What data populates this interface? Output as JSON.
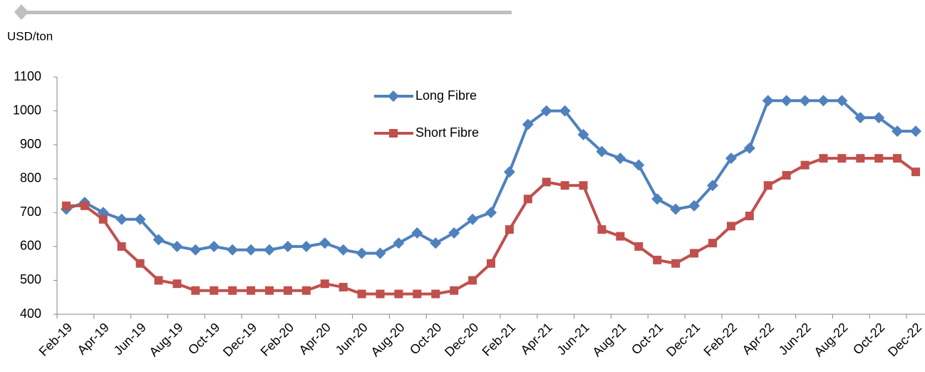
{
  "chart_data": {
    "type": "line",
    "y_label": "USD/ton",
    "categories": [
      "Feb-19",
      null,
      "Apr-19",
      null,
      "Jun-19",
      null,
      "Aug-19",
      null,
      "Oct-19",
      null,
      "Dec-19",
      null,
      "Feb-20",
      null,
      "Apr-20",
      null,
      "Jun-20",
      null,
      "Aug-20",
      null,
      "Oct-20",
      null,
      "Dec-20",
      null,
      "Feb-21",
      null,
      "Apr-21",
      null,
      "Jun-21",
      null,
      "Aug-21",
      null,
      "Oct-21",
      null,
      "Dec-21",
      null,
      "Feb-22",
      null,
      "Apr-22",
      null,
      "Jun-22",
      null,
      "Aug-22",
      null,
      "Oct-22",
      null,
      "Dec-22"
    ],
    "series": [
      {
        "name": "Long Fibre",
        "color": "#4f81bd",
        "marker": "diamond",
        "values": [
          710,
          730,
          700,
          680,
          680,
          620,
          600,
          590,
          600,
          590,
          590,
          590,
          600,
          600,
          610,
          590,
          580,
          580,
          610,
          640,
          610,
          640,
          680,
          700,
          820,
          960,
          1000,
          1000,
          930,
          880,
          860,
          840,
          740,
          710,
          720,
          780,
          860,
          890,
          1030,
          1030,
          1030,
          1030,
          1030,
          980,
          980,
          940,
          940
        ]
      },
      {
        "name": "Short Fibre",
        "color": "#c0504d",
        "marker": "square",
        "values": [
          720,
          720,
          680,
          600,
          550,
          500,
          490,
          470,
          470,
          470,
          470,
          470,
          470,
          470,
          490,
          480,
          460,
          460,
          460,
          460,
          460,
          470,
          500,
          550,
          650,
          740,
          790,
          780,
          780,
          650,
          630,
          600,
          560,
          550,
          580,
          610,
          660,
          690,
          780,
          810,
          840,
          860,
          860,
          860,
          860,
          860,
          820
        ]
      }
    ],
    "ylim": [
      400,
      1100
    ],
    "yticks": [
      400,
      500,
      600,
      700,
      800,
      900,
      1000,
      1100
    ],
    "grid": false,
    "legend": "top-center"
  }
}
